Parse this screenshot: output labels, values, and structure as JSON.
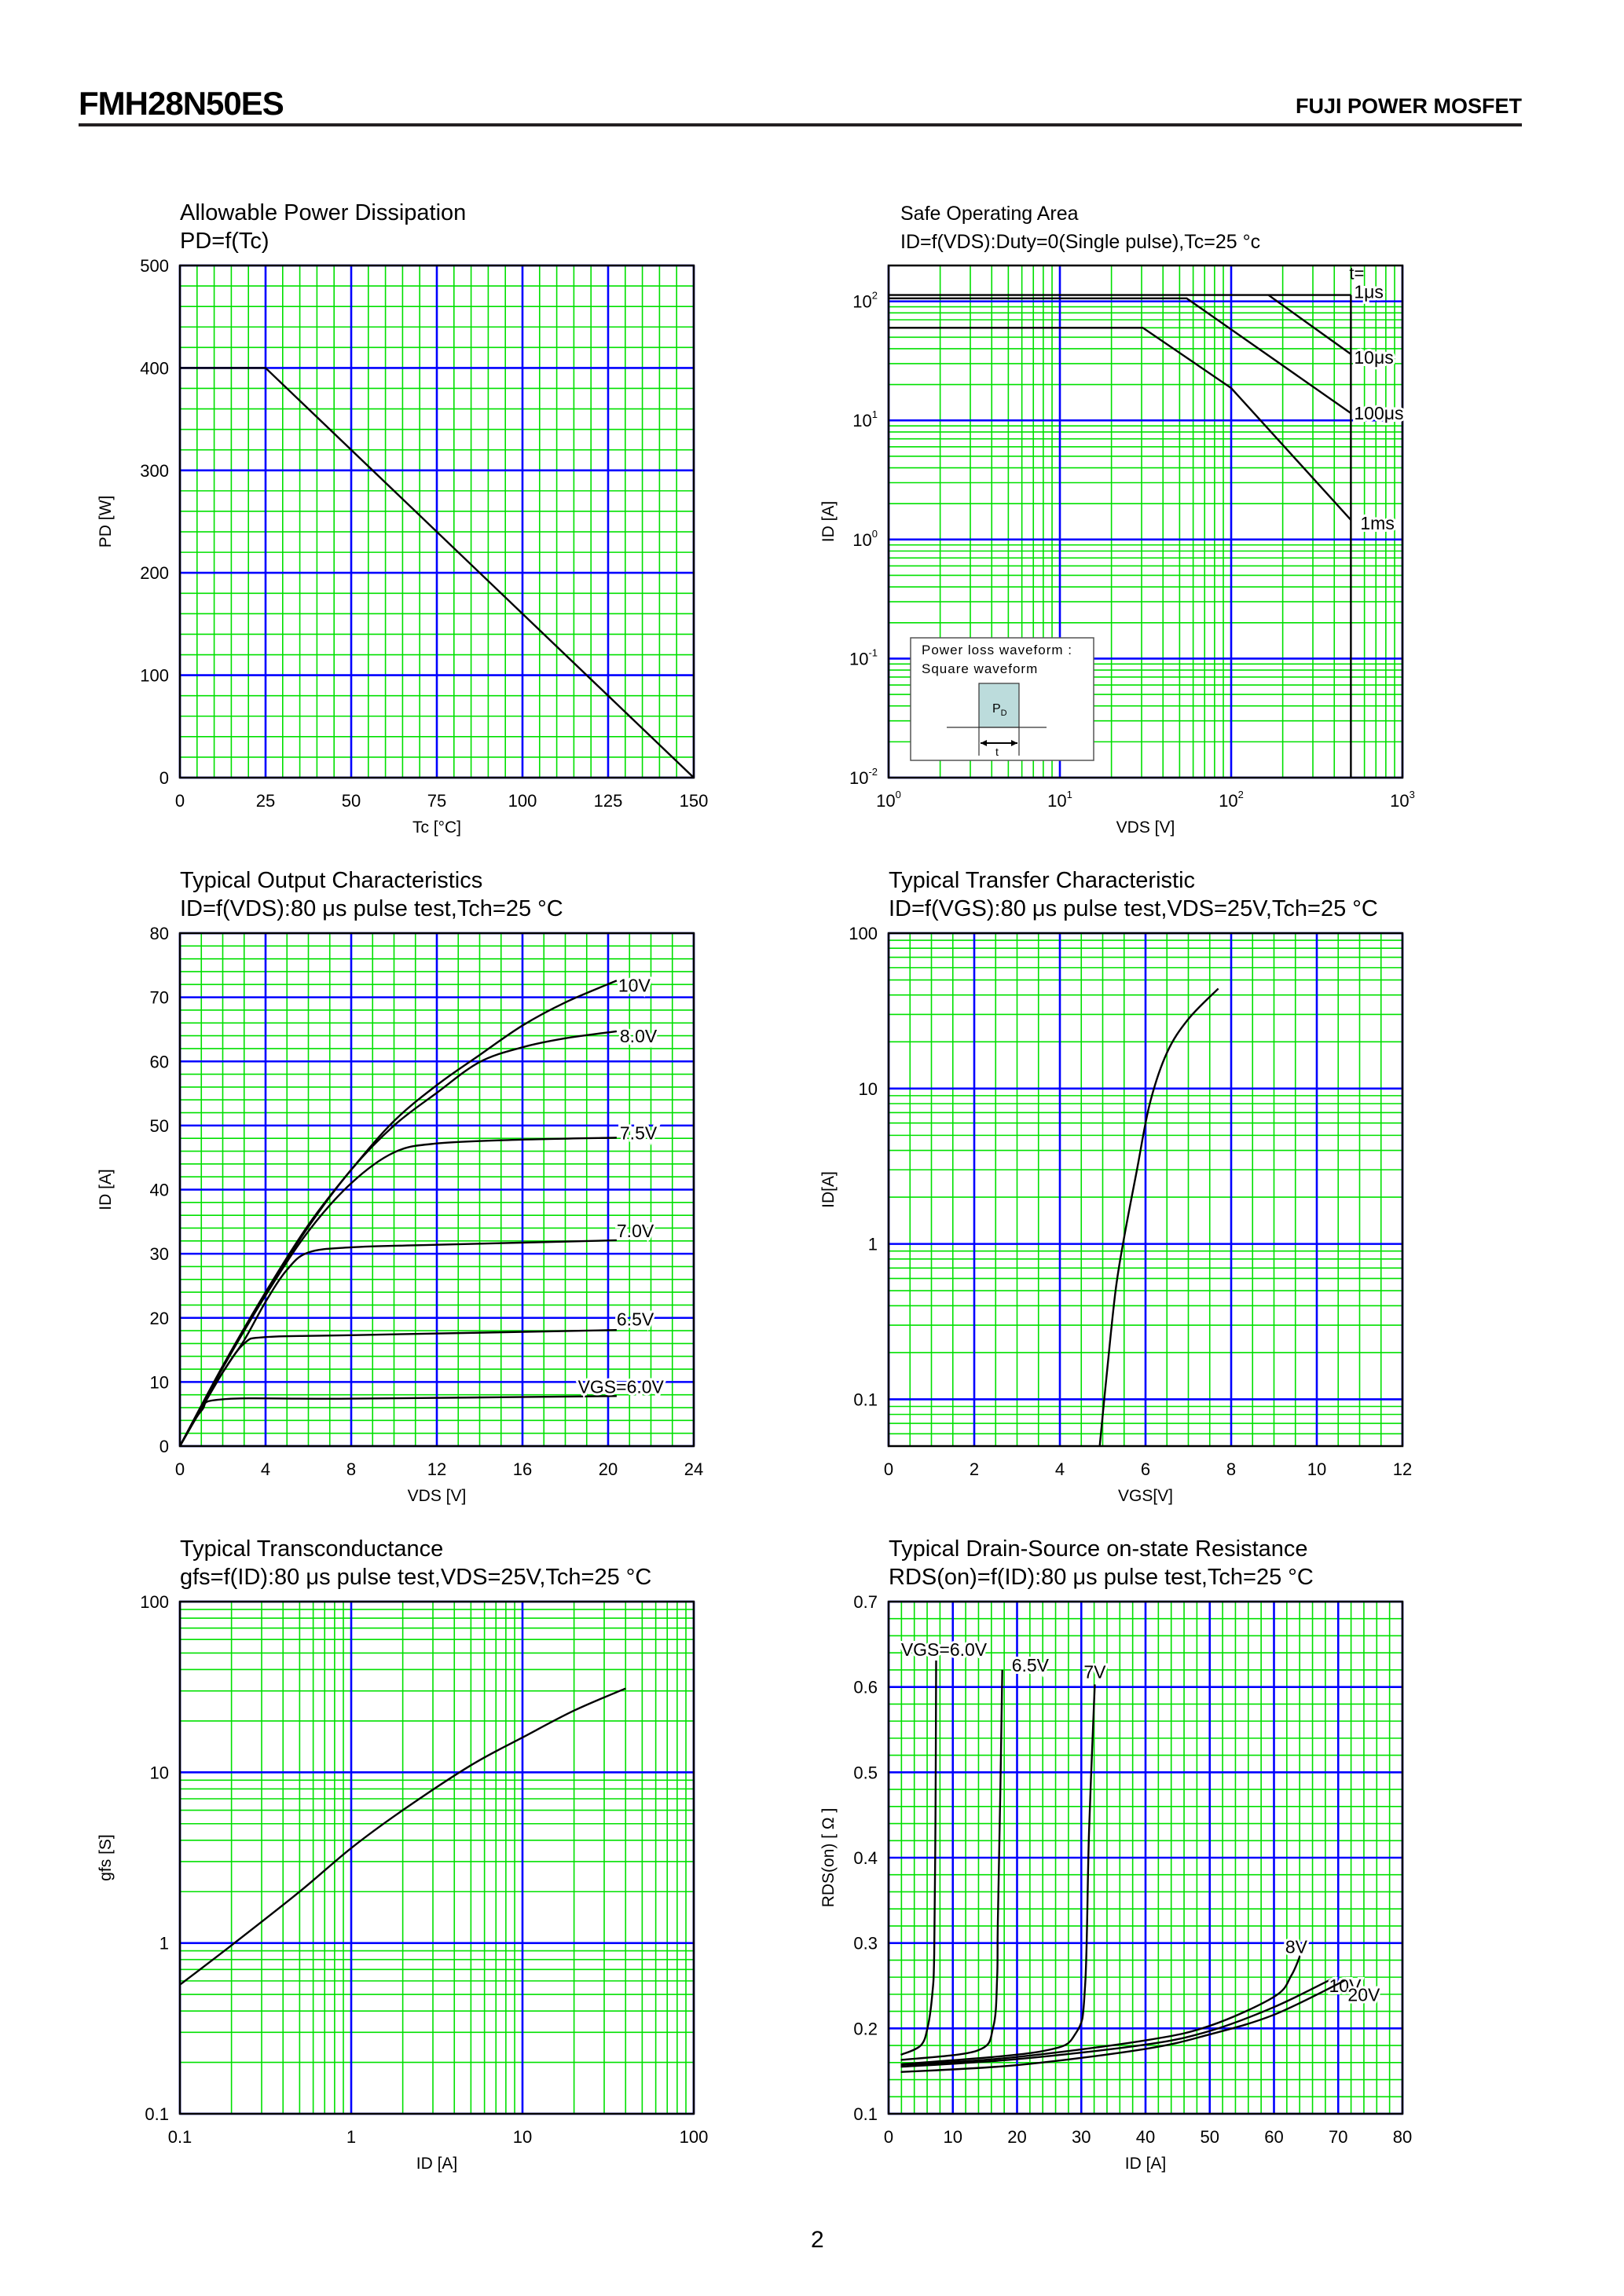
{
  "header": {
    "part_number": "FMH28N50ES",
    "brand": "FUJI POWER MOSFET"
  },
  "page_number": "2",
  "colors": {
    "major_grid": "#0000ff",
    "minor_grid": "#00e000",
    "curve": "#000000",
    "frame": "#000000",
    "inset_pulse": "#bcdcdc"
  },
  "chart_data": [
    {
      "type": "line",
      "title": "Allowable Power Dissipation",
      "subtitle": "PD=f(Tc)",
      "xlabel": "Tc [°C]",
      "ylabel": "PD [W]",
      "xscale": "linear",
      "yscale": "linear",
      "xlim": [
        0,
        150
      ],
      "ylim": [
        0,
        500
      ],
      "xticks": [
        0,
        25,
        50,
        75,
        100,
        125,
        150
      ],
      "xtick_labels": [
        "0",
        "25",
        "50",
        "75",
        "100",
        "125",
        "150"
      ],
      "yticks": [
        0,
        100,
        200,
        300,
        400,
        500
      ],
      "ytick_labels": [
        "0",
        "100",
        "200",
        "300",
        "400",
        "500"
      ],
      "x_minor": 5,
      "y_minor": 20,
      "grid": true,
      "series": [
        {
          "points": [
            [
              0,
              400
            ],
            [
              25,
              400
            ],
            [
              150,
              0
            ]
          ]
        }
      ]
    },
    {
      "type": "line",
      "title": "Safe Operating Area",
      "subtitle": "ID=f(VDS):Duty=0(Single pulse),Tc=25 °c",
      "xlabel": "VDS [V]",
      "ylabel": "ID [A]",
      "xscale": "log",
      "yscale": "log",
      "xlim": [
        1,
        1000
      ],
      "ylim": [
        0.01,
        200
      ],
      "xticks": [
        1,
        10,
        100,
        1000
      ],
      "xtick_labels": [
        {
          "base": "10",
          "exp": "0"
        },
        {
          "base": "10",
          "exp": "1"
        },
        {
          "base": "10",
          "exp": "2"
        },
        {
          "base": "10",
          "exp": "3"
        }
      ],
      "yticks": [
        0.01,
        0.1,
        1,
        10,
        100
      ],
      "ytick_labels": [
        {
          "base": "10",
          "exp": "-2"
        },
        {
          "base": "10",
          "exp": "-1"
        },
        {
          "base": "10",
          "exp": "0"
        },
        {
          "base": "10",
          "exp": "1"
        },
        {
          "base": "10",
          "exp": "2"
        }
      ],
      "grid": true,
      "legend_header": "t=",
      "series": [
        {
          "name": "1μs",
          "points": [
            [
              1,
              113
            ],
            [
              500,
              113
            ]
          ]
        },
        {
          "name": "10μs",
          "points": [
            [
              165,
              113
            ],
            [
              500,
              36
            ]
          ]
        },
        {
          "name": "100μs",
          "points": [
            [
              1,
              106
            ],
            [
              55,
              106
            ],
            [
              500,
              11.5
            ]
          ]
        },
        {
          "name": "1ms",
          "points": [
            [
              1,
              60
            ],
            [
              30.5,
              60
            ],
            [
              100,
              18.7
            ],
            [
              500,
              1.46
            ]
          ]
        },
        {
          "points": [
            [
              500,
              113
            ],
            [
              500,
              0.01
            ]
          ]
        }
      ],
      "inset": {
        "line1": "Power loss waveform :",
        "line2": "Square waveform",
        "pulse_label": "P",
        "pulse_sub": "D",
        "width_label": "t"
      }
    },
    {
      "type": "line",
      "title": "Typical Output Characteristics",
      "subtitle": "ID=f(VDS):80 μs pulse test,Tch=25 °C",
      "xlabel": "VDS [V]",
      "ylabel": "ID [A]",
      "xscale": "linear",
      "yscale": "linear",
      "xlim": [
        0,
        24
      ],
      "ylim": [
        0,
        80
      ],
      "xticks": [
        0,
        4,
        8,
        12,
        16,
        20,
        24
      ],
      "xtick_labels": [
        "0",
        "4",
        "8",
        "12",
        "16",
        "20",
        "24"
      ],
      "yticks": [
        0,
        10,
        20,
        30,
        40,
        50,
        60,
        70,
        80
      ],
      "ytick_labels": [
        "0",
        "10",
        "20",
        "30",
        "40",
        "50",
        "60",
        "70",
        "80"
      ],
      "x_minor": 1,
      "y_minor": 2,
      "grid": true,
      "series": [
        {
          "name": "10V",
          "points": [
            [
              0,
              0
            ],
            [
              2,
              12.5
            ],
            [
              4,
              24
            ],
            [
              6,
              34.5
            ],
            [
              8,
              43.1
            ],
            [
              10,
              50.7
            ],
            [
              12,
              56.3
            ],
            [
              14,
              61
            ],
            [
              16,
              65.6
            ],
            [
              18,
              69.2
            ],
            [
              20.4,
              72.6
            ]
          ]
        },
        {
          "name": "8.0V",
          "points": [
            [
              0,
              0
            ],
            [
              2,
              12.4
            ],
            [
              4,
              23.8
            ],
            [
              6,
              34.2
            ],
            [
              8,
              43.1
            ],
            [
              10,
              50
            ],
            [
              12,
              55.1
            ],
            [
              14,
              59.9
            ],
            [
              16,
              62.2
            ],
            [
              18,
              63.6
            ],
            [
              20.4,
              64.7
            ]
          ]
        },
        {
          "name": "7.5V",
          "points": [
            [
              0,
              0
            ],
            [
              2,
              12.2
            ],
            [
              4,
              23.5
            ],
            [
              6,
              33.5
            ],
            [
              8,
              41
            ],
            [
              10,
              45.8
            ],
            [
              12,
              47.2
            ],
            [
              16,
              47.8
            ],
            [
              20.4,
              48.1
            ]
          ]
        },
        {
          "name": "7.0V",
          "points": [
            [
              0,
              0
            ],
            [
              2,
              11.5
            ],
            [
              3,
              16.5
            ],
            [
              4,
              22.5
            ],
            [
              5,
              27.5
            ],
            [
              6,
              30.2
            ],
            [
              8,
              31
            ],
            [
              12,
              31.4
            ],
            [
              20.4,
              32.1
            ]
          ]
        },
        {
          "name": "6.5V",
          "points": [
            [
              0,
              0
            ],
            [
              1,
              6
            ],
            [
              2,
              11.5
            ],
            [
              3,
              16
            ],
            [
              4,
              17
            ],
            [
              8,
              17.3
            ],
            [
              20.4,
              18.1
            ]
          ]
        },
        {
          "name": "VGS=6.0V",
          "points": [
            [
              0,
              0
            ],
            [
              1,
              5.5
            ],
            [
              2,
              7.3
            ],
            [
              8,
              7.4
            ],
            [
              20.4,
              7.8
            ]
          ]
        }
      ]
    },
    {
      "type": "line",
      "title": "Typical Transfer Characteristic",
      "subtitle": "ID=f(VGS):80 μs pulse test,VDS=25V,Tch=25 °C",
      "xlabel": "VGS[V]",
      "ylabel": "ID[A]",
      "xscale": "linear",
      "yscale": "log",
      "xlim": [
        0,
        12
      ],
      "ylim": [
        0.05,
        100
      ],
      "xticks": [
        0,
        2,
        4,
        6,
        8,
        10,
        12
      ],
      "xtick_labels": [
        "0",
        "2",
        "4",
        "6",
        "8",
        "10",
        "12"
      ],
      "yticks": [
        0.1,
        1,
        10,
        100
      ],
      "ytick_labels": [
        "0.1",
        "1",
        "10",
        "100"
      ],
      "x_minor": 0.5,
      "grid": true,
      "series": [
        {
          "points": [
            [
              4.93,
              0.05
            ],
            [
              5.1,
              0.15
            ],
            [
              5.3,
              0.5
            ],
            [
              5.5,
              1.1
            ],
            [
              5.8,
              3
            ],
            [
              6.1,
              8
            ],
            [
              6.5,
              17
            ],
            [
              7,
              28
            ],
            [
              7.7,
              44
            ]
          ]
        }
      ]
    },
    {
      "type": "line",
      "title": "Typical Transconductance",
      "subtitle": "gfs=f(ID):80 μs pulse test,VDS=25V,Tch=25  °C",
      "xlabel": "ID [A]",
      "ylabel": "gfs [S]",
      "xscale": "log",
      "yscale": "log",
      "xlim": [
        0.1,
        100
      ],
      "ylim": [
        0.1,
        100
      ],
      "xticks": [
        0.1,
        1,
        10,
        100
      ],
      "xtick_labels": [
        "0.1",
        "1",
        "10",
        "100"
      ],
      "yticks": [
        0.1,
        1,
        10,
        100
      ],
      "ytick_labels": [
        "0.1",
        "1",
        "10",
        "100"
      ],
      "grid": true,
      "series": [
        {
          "points": [
            [
              0.1,
              0.57
            ],
            [
              0.2,
              0.97
            ],
            [
              0.5,
              2.0
            ],
            [
              1,
              3.6
            ],
            [
              2,
              6
            ],
            [
              5,
              11
            ],
            [
              10,
              16
            ],
            [
              20,
              23
            ],
            [
              40,
              31
            ]
          ]
        }
      ]
    },
    {
      "type": "line",
      "title": "Typical Drain-Source on-state Resistance",
      "subtitle": "RDS(on)=f(ID):80  μs pulse test,Tch=25  °C",
      "xlabel": "ID [A]",
      "ylabel": "RDS(on) [ Ω ]",
      "xscale": "linear",
      "yscale": "linear",
      "xlim": [
        0,
        80
      ],
      "ylim": [
        0.1,
        0.7
      ],
      "xticks": [
        0,
        10,
        20,
        30,
        40,
        50,
        60,
        70,
        80
      ],
      "xtick_labels": [
        "0",
        "10",
        "20",
        "30",
        "40",
        "50",
        "60",
        "70",
        "80"
      ],
      "yticks": [
        0.1,
        0.2,
        0.3,
        0.4,
        0.5,
        0.6,
        0.7
      ],
      "ytick_labels": [
        "0.1",
        "0.2",
        "0.3",
        "0.4",
        "0.5",
        "0.6",
        "0.7"
      ],
      "x_minor": 2,
      "y_minor": 0.02,
      "grid": true,
      "series": [
        {
          "name": "VGS=6.0V",
          "points": [
            [
              1.9,
              0.169
            ],
            [
              5,
              0.18
            ],
            [
              6.1,
              0.202
            ],
            [
              6.8,
              0.24
            ],
            [
              7.1,
              0.287
            ],
            [
              7.3,
              0.45
            ],
            [
              7.4,
              0.631
            ]
          ]
        },
        {
          "name": "6.5V",
          "points": [
            [
              1.9,
              0.163
            ],
            [
              13.8,
              0.174
            ],
            [
              16.3,
              0.202
            ],
            [
              16.9,
              0.26
            ],
            [
              17,
              0.322
            ],
            [
              17.4,
              0.48
            ],
            [
              17.7,
              0.62
            ]
          ]
        },
        {
          "name": "7V",
          "points": [
            [
              1.9,
              0.158
            ],
            [
              23.7,
              0.173
            ],
            [
              29.2,
              0.195
            ],
            [
              30.6,
              0.251
            ],
            [
              31.2,
              0.429
            ],
            [
              32.1,
              0.603
            ]
          ]
        },
        {
          "name": "8V",
          "points": [
            [
              1.9,
              0.157
            ],
            [
              19.3,
              0.166
            ],
            [
              40,
              0.186
            ],
            [
              50,
              0.203
            ],
            [
              60,
              0.237
            ],
            [
              62.7,
              0.262
            ],
            [
              64.2,
              0.288
            ]
          ]
        },
        {
          "name": "10V",
          "points": [
            [
              1.9,
              0.155
            ],
            [
              20,
              0.164
            ],
            [
              40,
              0.181
            ],
            [
              50,
              0.197
            ],
            [
              60,
              0.225
            ],
            [
              69.3,
              0.259
            ]
          ]
        },
        {
          "name": "20V",
          "points": [
            [
              1.9,
              0.149
            ],
            [
              20,
              0.157
            ],
            [
              40,
              0.176
            ],
            [
              50,
              0.193
            ],
            [
              60,
              0.216
            ],
            [
              71,
              0.256
            ]
          ]
        }
      ]
    }
  ]
}
